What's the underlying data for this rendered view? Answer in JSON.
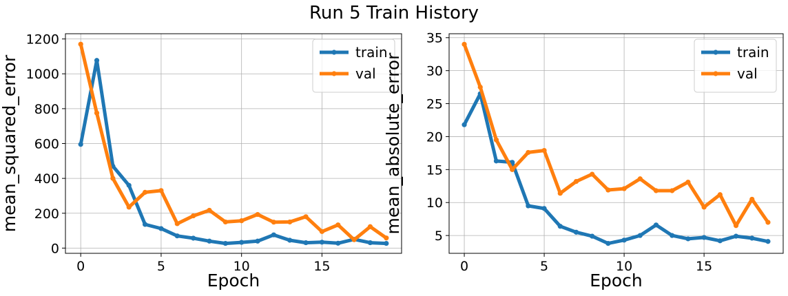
{
  "figure": {
    "title": "Run 5 Train History"
  },
  "chart_data": [
    {
      "type": "line",
      "xlabel": "Epoch",
      "ylabel": "mean_squared_error",
      "xlim": [
        -0.95,
        19.95
      ],
      "ylim": [
        -30,
        1230
      ],
      "xticks": [
        0,
        5,
        10,
        15
      ],
      "yticks": [
        0,
        200,
        400,
        600,
        800,
        1000,
        1200
      ],
      "grid": true,
      "legend_position": "top-right",
      "x": [
        0,
        1,
        2,
        3,
        4,
        5,
        6,
        7,
        8,
        9,
        10,
        11,
        12,
        13,
        14,
        15,
        16,
        17,
        18,
        19
      ],
      "series": [
        {
          "name": "train",
          "color": "#1f77b4",
          "values": [
            595,
            1077,
            470,
            360,
            136,
            112,
            70,
            57,
            40,
            27,
            33,
            40,
            76,
            45,
            31,
            34,
            28,
            50,
            31,
            27
          ]
        },
        {
          "name": "val",
          "color": "#ff7f0e",
          "values": [
            1170,
            775,
            400,
            235,
            320,
            330,
            140,
            185,
            217,
            150,
            157,
            193,
            149,
            150,
            180,
            95,
            133,
            48,
            123,
            58
          ]
        }
      ]
    },
    {
      "type": "line",
      "xlabel": "Epoch",
      "ylabel": "mean_absolute_error",
      "xlim": [
        -0.95,
        19.95
      ],
      "ylim": [
        2.3,
        35.6
      ],
      "xticks": [
        0,
        5,
        10,
        15
      ],
      "yticks": [
        5,
        10,
        15,
        20,
        25,
        30,
        35
      ],
      "grid": true,
      "legend_position": "top-right",
      "x": [
        0,
        1,
        2,
        3,
        4,
        5,
        6,
        7,
        8,
        9,
        10,
        11,
        12,
        13,
        14,
        15,
        16,
        17,
        18,
        19
      ],
      "series": [
        {
          "name": "train",
          "color": "#1f77b4",
          "values": [
            21.8,
            26.5,
            16.3,
            16.1,
            9.5,
            9.1,
            6.4,
            5.5,
            4.9,
            3.8,
            4.3,
            5.0,
            6.6,
            5.0,
            4.5,
            4.7,
            4.2,
            4.9,
            4.6,
            4.1
          ]
        },
        {
          "name": "val",
          "color": "#ff7f0e",
          "values": [
            34.0,
            27.5,
            19.5,
            15.0,
            17.6,
            17.9,
            11.4,
            13.2,
            14.3,
            11.9,
            12.1,
            13.6,
            11.8,
            11.8,
            13.1,
            9.3,
            11.2,
            6.5,
            10.5,
            7.0
          ]
        }
      ]
    }
  ]
}
